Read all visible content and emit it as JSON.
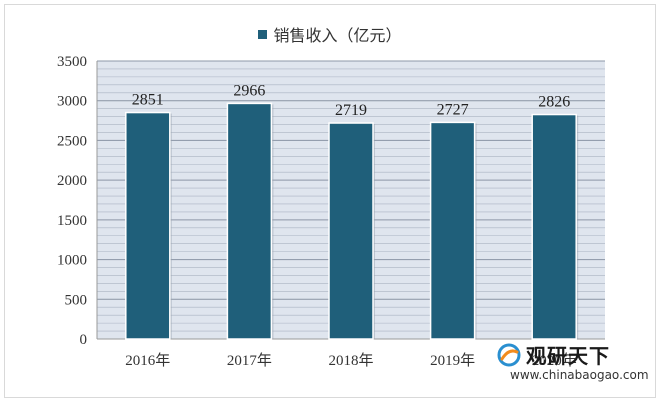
{
  "chart_data": {
    "type": "bar",
    "categories": [
      "2016年",
      "2017年",
      "2018年",
      "2019年",
      "2020年"
    ],
    "series": [
      {
        "name": "销售收入（亿元）",
        "values": [
          2851,
          2966,
          2719,
          2727,
          2826
        ],
        "color": "#1f5f7a"
      }
    ],
    "data_labels": [
      "2851",
      "2966",
      "2719",
      "2727",
      "2826"
    ],
    "ylim": [
      0,
      3500
    ],
    "yticks": [
      0,
      500,
      1000,
      1500,
      2000,
      2500,
      3000,
      3500
    ],
    "grid": true,
    "legend_position": "top-center",
    "plot_background": "#dfe5ee",
    "grid_color": "#aab3c2"
  },
  "watermark": {
    "name": "观研天下",
    "url": "www.chinabaogao.com"
  }
}
